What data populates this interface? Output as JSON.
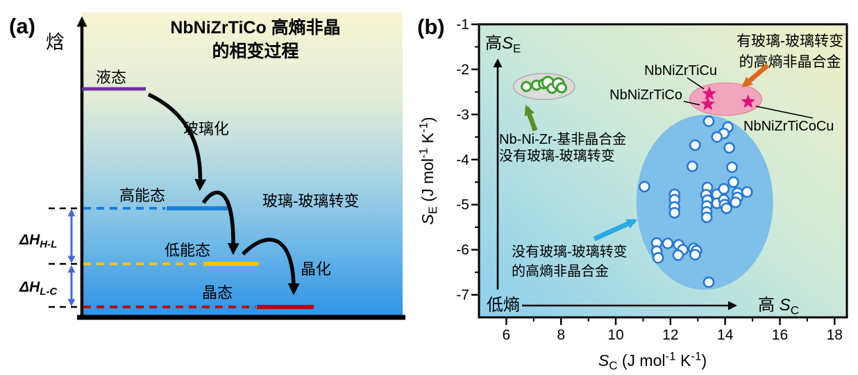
{
  "panel_a": {
    "tag": "(a)",
    "axis_label": "焓",
    "title_lines": [
      "NbNiZrTiCo 高熵非晶",
      "的相变过程"
    ],
    "states": {
      "liquid": "液态",
      "high_energy": "高能态",
      "low_energy": "低能态",
      "crystal": "晶态"
    },
    "processes": {
      "vitrification": "玻璃化",
      "glass_glass_transition": "玻璃-玻璃转变",
      "crystallization": "晶化"
    },
    "enthalpy_gaps": [
      {
        "base": "ΔH",
        "sub": "H-L"
      },
      {
        "base": "ΔH",
        "sub": "L-C"
      }
    ],
    "colors": {
      "liquid_line": "#7030A0",
      "high_energy_line": "#1E7FD9",
      "low_energy_line": "#FFC000",
      "crystal_line": "#C00000",
      "gap_arrow": "#4868D0",
      "bg_top": "#F7F5D2",
      "bg_mid": "#AFD6E2",
      "bg_bottom": "#2E93E6"
    }
  },
  "panel_b": {
    "tag": "(b)"
  },
  "chart_data": {
    "type": "scatter",
    "xlabel": "S_C (J mol^-1 K^-1)",
    "ylabel": "S_E (J mol^-1 K^-1)",
    "xlabel_segs": [
      {
        "t": "S",
        "i": true
      },
      {
        "t": "C",
        "sub": true
      },
      {
        "t": " (J mol"
      },
      {
        "t": "-1",
        "sup": true
      },
      {
        "t": " K"
      },
      {
        "t": "-1",
        "sup": true
      },
      {
        "t": ")"
      }
    ],
    "ylabel_segs": [
      {
        "t": "S",
        "i": true
      },
      {
        "t": "E",
        "sub": true
      },
      {
        "t": " (J mol"
      },
      {
        "t": "-1",
        "sup": true
      },
      {
        "t": " K"
      },
      {
        "t": "-1",
        "sup": true
      },
      {
        "t": ")"
      }
    ],
    "xlim": [
      5.0,
      18.45
    ],
    "ylim": [
      -7.5,
      -1
    ],
    "xticks": [
      6,
      8,
      10,
      12,
      14,
      16,
      18
    ],
    "yticks": [
      -1,
      -2,
      -3,
      -4,
      -5,
      -6,
      -7
    ],
    "grid": false,
    "corner_labels": {
      "high_se_segs": [
        {
          "t": "高"
        },
        {
          "t": "S",
          "i": true
        },
        {
          "t": "E",
          "sub": true
        }
      ],
      "low_entropy": "低熵",
      "high_sc_segs": [
        {
          "t": "高 "
        },
        {
          "t": "S",
          "i": true
        },
        {
          "t": "C",
          "sub": true
        }
      ]
    },
    "annotations": {
      "with_ggt": [
        "有玻璃-玻璃转变",
        "的高熵非晶合金"
      ],
      "nb_ni_zr": [
        "Nb-Ni-Zr-基非晶合金",
        "没有玻璃-玻璃转变"
      ],
      "without_ggt": [
        "没有玻璃-玻璃转变",
        "的高熵非晶合金"
      ]
    },
    "arrow_colors": {
      "green": "#5B8F29",
      "cyan": "#29ABE2",
      "orange": "#DD6A1C",
      "black": "#000000"
    },
    "series": [
      {
        "name": "没有玻璃-玻璃转变的高熵非晶合金",
        "marker": "circle",
        "marker_fill": "#FFFFFF",
        "edge_color": "#2478D6",
        "points": [
          [
            11.05,
            -4.6
          ],
          [
            12.9,
            -3.68
          ],
          [
            13.4,
            -3.15
          ],
          [
            14.1,
            -3.28
          ],
          [
            13.95,
            -3.42
          ],
          [
            13.7,
            -3.5
          ],
          [
            14.15,
            -3.74
          ],
          [
            12.8,
            -4.15
          ],
          [
            14.25,
            -4.17
          ],
          [
            14.3,
            -4.5
          ],
          [
            12.15,
            -4.77
          ],
          [
            12.15,
            -4.89
          ],
          [
            12.15,
            -5.05
          ],
          [
            12.15,
            -5.18
          ],
          [
            13.35,
            -4.62
          ],
          [
            13.3,
            -4.78
          ],
          [
            13.35,
            -4.9
          ],
          [
            13.33,
            -5.03
          ],
          [
            13.32,
            -5.16
          ],
          [
            13.33,
            -5.28
          ],
          [
            13.7,
            -4.77
          ],
          [
            13.7,
            -4.97
          ],
          [
            13.95,
            -4.65
          ],
          [
            13.95,
            -4.89
          ],
          [
            13.98,
            -5.0
          ],
          [
            14.45,
            -4.74
          ],
          [
            14.45,
            -4.84
          ],
          [
            14.38,
            -4.95
          ],
          [
            14.05,
            -5.08
          ],
          [
            14.8,
            -4.72
          ],
          [
            11.5,
            -5.85
          ],
          [
            11.9,
            -5.86
          ],
          [
            12.3,
            -5.89
          ],
          [
            11.5,
            -6.03
          ],
          [
            12.45,
            -6.0
          ],
          [
            12.85,
            -5.97
          ],
          [
            12.95,
            -6.02
          ],
          [
            11.55,
            -6.18
          ],
          [
            12.28,
            -6.12
          ],
          [
            12.9,
            -6.11
          ],
          [
            13.4,
            -6.72
          ]
        ]
      },
      {
        "name": "Nb-Ni-Zr-基非晶合金（没有玻璃-玻璃转变）",
        "marker": "circle",
        "marker_fill": "#FFFFFF",
        "edge_color": "#3C9E2D",
        "points": [
          [
            6.73,
            -2.38
          ],
          [
            7.1,
            -2.35
          ],
          [
            7.36,
            -2.32
          ],
          [
            7.52,
            -2.29
          ],
          [
            7.67,
            -2.42
          ],
          [
            7.9,
            -2.32
          ],
          [
            8.02,
            -2.41
          ]
        ],
        "sizes": [
          6.5,
          6.5,
          6.5,
          8,
          6.5,
          8,
          6.5
        ]
      },
      {
        "name": "有玻璃-玻璃转变的高熵非晶合金",
        "marker": "star",
        "marker_fill": "#E2117E",
        "points": [
          [
            13.42,
            -2.54
          ],
          [
            13.37,
            -2.77
          ],
          [
            14.84,
            -2.72
          ]
        ],
        "point_labels": [
          "NbNiZrTiCu",
          "NbNiZrTiCo",
          "NbNiZrTiCoCu"
        ]
      }
    ],
    "regions": [
      {
        "name": "nb-ni-zr-group-ellipse",
        "shape": "ellipse",
        "cx": 7.38,
        "cy": -2.38,
        "rx": 1.12,
        "ry": 0.29,
        "fill": "#DBDBDB",
        "stroke": "#A8A8A8"
      },
      {
        "name": "no-ggt-group-ellipse",
        "shape": "ellipse",
        "cx": 13.25,
        "cy": -4.95,
        "rx": 2.5,
        "ry": 1.94,
        "fill": "#7FBFE9",
        "stroke": "none"
      },
      {
        "name": "ggt-group-ellipse",
        "shape": "ellipse",
        "cx": 14.02,
        "cy": -2.66,
        "rx": 1.32,
        "ry": 0.36,
        "fill": "#F2A6BE",
        "stroke": "#E789A4"
      }
    ],
    "bg_colors": {
      "bottom_left": "#8BCFED",
      "mid": "#C9E8DA",
      "top_right": "#F1F0C6"
    }
  }
}
